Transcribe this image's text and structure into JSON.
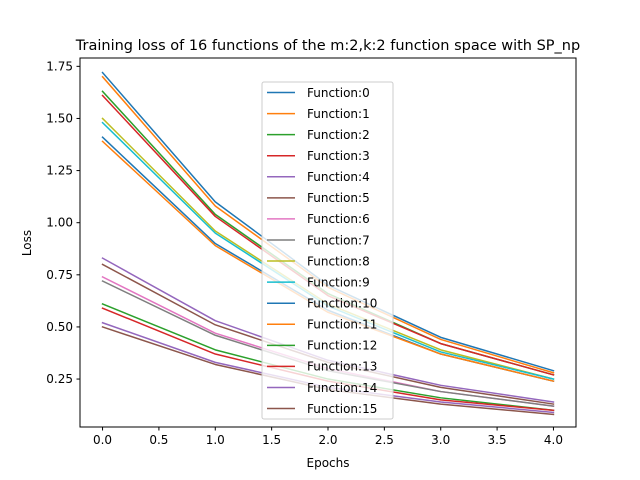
{
  "chart_data": {
    "type": "line",
    "title": "Training loss of 16 functions of the m:2,k:2 function space with SP_np",
    "xlabel": "Epochs",
    "ylabel": "Loss",
    "x": [
      0,
      1,
      2,
      3,
      4
    ],
    "xlim": [
      -0.2,
      4.2
    ],
    "ylim": [
      0.02,
      1.79
    ],
    "xticks": [
      0.0,
      0.5,
      1.0,
      1.5,
      2.0,
      2.5,
      3.0,
      3.5,
      4.0
    ],
    "xtick_labels": [
      "0.0",
      "0.5",
      "1.0",
      "1.5",
      "2.0",
      "2.5",
      "3.0",
      "3.5",
      "4.0"
    ],
    "yticks": [
      0.25,
      0.5,
      0.75,
      1.0,
      1.25,
      1.5,
      1.75
    ],
    "ytick_labels": [
      "0.25",
      "0.50",
      "0.75",
      "1.00",
      "1.25",
      "1.50",
      "1.75"
    ],
    "grid": false,
    "legend_position": "upper-center",
    "series": [
      {
        "name": "Function:0",
        "color": "#1f77b4",
        "values": [
          1.72,
          1.1,
          0.7,
          0.45,
          0.29
        ]
      },
      {
        "name": "Function:1",
        "color": "#ff7f0e",
        "values": [
          1.7,
          1.08,
          0.69,
          0.44,
          0.28
        ]
      },
      {
        "name": "Function:2",
        "color": "#2ca02c",
        "values": [
          1.63,
          1.04,
          0.66,
          0.42,
          0.27
        ]
      },
      {
        "name": "Function:3",
        "color": "#d62728",
        "values": [
          1.61,
          1.03,
          0.65,
          0.42,
          0.27
        ]
      },
      {
        "name": "Function:4",
        "color": "#9467bd",
        "values": [
          0.52,
          0.33,
          0.21,
          0.14,
          0.09
        ]
      },
      {
        "name": "Function:5",
        "color": "#8c564b",
        "values": [
          0.5,
          0.32,
          0.2,
          0.13,
          0.08
        ]
      },
      {
        "name": "Function:6",
        "color": "#e377c2",
        "values": [
          0.74,
          0.47,
          0.3,
          0.19,
          0.12
        ]
      },
      {
        "name": "Function:7",
        "color": "#7f7f7f",
        "values": [
          0.72,
          0.46,
          0.29,
          0.19,
          0.12
        ]
      },
      {
        "name": "Function:8",
        "color": "#bcbd22",
        "values": [
          1.5,
          0.96,
          0.61,
          0.39,
          0.25
        ]
      },
      {
        "name": "Function:9",
        "color": "#17becf",
        "values": [
          1.48,
          0.95,
          0.6,
          0.38,
          0.25
        ]
      },
      {
        "name": "Function:10",
        "color": "#1f77b4",
        "values": [
          1.41,
          0.9,
          0.58,
          0.37,
          0.24
        ]
      },
      {
        "name": "Function:11",
        "color": "#ff7f0e",
        "values": [
          1.39,
          0.89,
          0.57,
          0.37,
          0.24
        ]
      },
      {
        "name": "Function:12",
        "color": "#2ca02c",
        "values": [
          0.61,
          0.39,
          0.25,
          0.16,
          0.1
        ]
      },
      {
        "name": "Function:13",
        "color": "#d62728",
        "values": [
          0.59,
          0.37,
          0.24,
          0.15,
          0.1
        ]
      },
      {
        "name": "Function:14",
        "color": "#9467bd",
        "values": [
          0.83,
          0.53,
          0.34,
          0.22,
          0.14
        ]
      },
      {
        "name": "Function:15",
        "color": "#8c564b",
        "values": [
          0.8,
          0.51,
          0.33,
          0.21,
          0.13
        ]
      }
    ]
  }
}
